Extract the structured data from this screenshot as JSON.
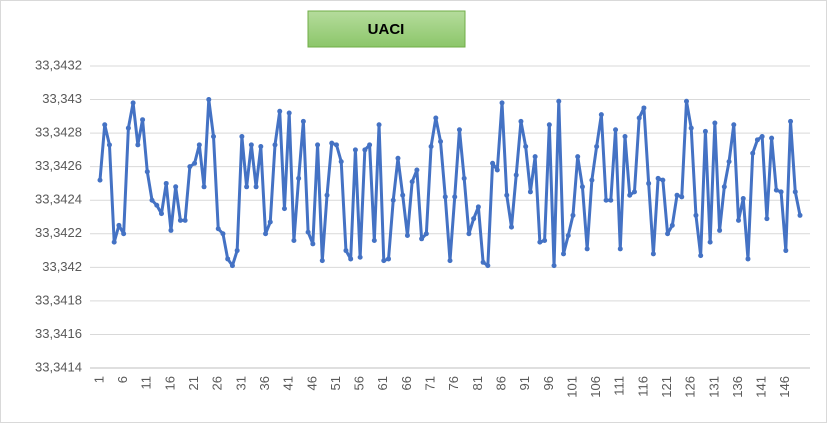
{
  "chart_data": {
    "type": "line",
    "title": "UACI",
    "categories": [
      "1",
      null,
      null,
      null,
      null,
      "6",
      null,
      null,
      null,
      null,
      "11",
      null,
      null,
      null,
      null,
      "16",
      null,
      null,
      null,
      null,
      "21",
      null,
      null,
      null,
      null,
      "26",
      null,
      null,
      null,
      null,
      "31",
      null,
      null,
      null,
      null,
      "36",
      null,
      null,
      null,
      null,
      "41",
      null,
      null,
      null,
      null,
      "46",
      null,
      null,
      null,
      null,
      "51",
      null,
      null,
      null,
      null,
      "56",
      null,
      null,
      null,
      null,
      "61",
      null,
      null,
      null,
      null,
      "66",
      null,
      null,
      null,
      null,
      "71",
      null,
      null,
      null,
      null,
      "76",
      null,
      null,
      null,
      null,
      "81",
      null,
      null,
      null,
      null,
      "86",
      null,
      null,
      null,
      null,
      "91",
      null,
      null,
      null,
      null,
      "96",
      null,
      null,
      null,
      null,
      "101",
      null,
      null,
      null,
      null,
      "106",
      null,
      null,
      null,
      null,
      "111",
      null,
      null,
      null,
      null,
      "116",
      null,
      null,
      null,
      null,
      "121",
      null,
      null,
      null,
      null,
      "126",
      null,
      null,
      null,
      null,
      "131",
      null,
      null,
      null,
      null,
      "136",
      null,
      null,
      null,
      null,
      "141",
      null,
      null,
      null,
      null,
      "146",
      null,
      null,
      null
    ],
    "values": [
      33.34252,
      33.34285,
      33.34273,
      33.34215,
      33.34225,
      33.3422,
      33.34283,
      33.34298,
      33.34273,
      33.34288,
      33.34257,
      33.3424,
      33.34237,
      33.34232,
      33.3425,
      33.34222,
      33.34248,
      33.34228,
      33.34228,
      33.3426,
      33.34262,
      33.34273,
      33.34248,
      33.343,
      33.34278,
      33.34223,
      33.3422,
      33.34205,
      33.34201,
      33.3421,
      33.34278,
      33.34248,
      33.34273,
      33.34248,
      33.34272,
      33.3422,
      33.34227,
      33.34273,
      33.34293,
      33.34235,
      33.34292,
      33.34216,
      33.34253,
      33.34287,
      33.34221,
      33.34214,
      33.34273,
      33.34204,
      33.34243,
      33.34274,
      33.34273,
      33.34263,
      33.3421,
      33.34205,
      33.3427,
      33.34206,
      33.3427,
      33.34273,
      33.34216,
      33.34285,
      33.34204,
      33.34205,
      33.3424,
      33.34265,
      33.34243,
      33.34219,
      33.34251,
      33.34258,
      33.34217,
      33.3422,
      33.34272,
      33.34289,
      33.34275,
      33.34242,
      33.34204,
      33.34242,
      33.34282,
      33.34253,
      33.3422,
      33.34229,
      33.34236,
      33.34203,
      33.34201,
      33.34262,
      33.34258,
      33.34298,
      33.34243,
      33.34224,
      33.34255,
      33.34287,
      33.34272,
      33.34245,
      33.34266,
      33.34215,
      33.34216,
      33.34285,
      33.34201,
      33.34299,
      33.34208,
      33.34219,
      33.34231,
      33.34266,
      33.34248,
      33.34211,
      33.34252,
      33.34272,
      33.34291,
      33.3424,
      33.3424,
      33.34282,
      33.34211,
      33.34278,
      33.34243,
      33.34245,
      33.34289,
      33.34295,
      33.3425,
      33.34208,
      33.34253,
      33.34252,
      33.3422,
      33.34225,
      33.34243,
      33.34242,
      33.34299,
      33.34283,
      33.34231,
      33.34207,
      33.34281,
      33.34215,
      33.34286,
      33.34222,
      33.34248,
      33.34263,
      33.34285,
      33.34228,
      33.34241,
      33.34205,
      33.34268,
      33.34276,
      33.34278,
      33.34229,
      33.34277,
      33.34246,
      33.34245,
      33.3421,
      33.34287,
      33.34245,
      33.34231
    ],
    "color": "#4472c4",
    "ylim": [
      33.3414,
      33.3432
    ],
    "yticks": [
      {
        "value": 33.3414,
        "label": "33,3414"
      },
      {
        "value": 33.3416,
        "label": "33,3416"
      },
      {
        "value": 33.3418,
        "label": "33,3418"
      },
      {
        "value": 33.342,
        "label": "33,342"
      },
      {
        "value": 33.3422,
        "label": "33,3422"
      },
      {
        "value": 33.3424,
        "label": "33,3424"
      },
      {
        "value": 33.3426,
        "label": "33,3426"
      },
      {
        "value": 33.3428,
        "label": "33,3428"
      },
      {
        "value": 33.343,
        "label": "33,343"
      },
      {
        "value": 33.3432,
        "label": "33,3432"
      }
    ],
    "grid": true
  }
}
